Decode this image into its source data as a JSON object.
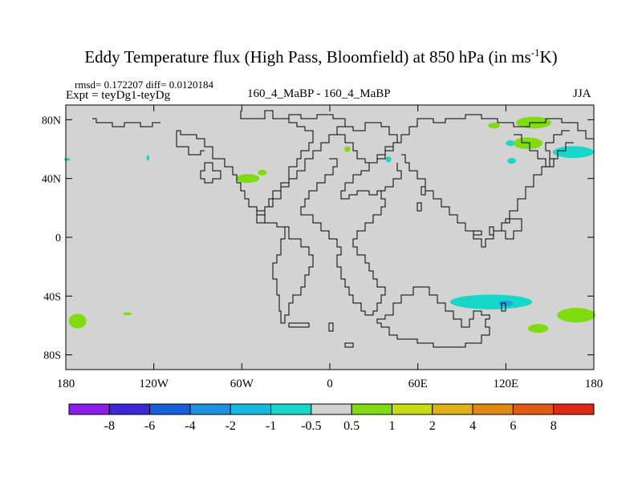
{
  "title": {
    "text_before": "Eddy Temperature flux (High Pass, Bloomfield) at 850 hPa (in ms",
    "superscript": "-1",
    "text_after": "K)"
  },
  "stats": "rmsd= 0.172207 diff= 0.0120184",
  "experiment": "Expt = teyDg1-teyDg",
  "center_label": "160_4_MaBP - 160_4_MaBP",
  "season": "JJA",
  "colors": {
    "land_background": "#d3d3d3",
    "coastline": "#000000"
  },
  "map": {
    "projection": "cylindrical-equidistant",
    "lon_range": [
      -180,
      180
    ],
    "lat_range": [
      -90,
      90
    ],
    "lon_ticks": [
      {
        "value": -180,
        "label": "180"
      },
      {
        "value": -120,
        "label": "120W"
      },
      {
        "value": -60,
        "label": "60W"
      },
      {
        "value": 0,
        "label": "0"
      },
      {
        "value": 60,
        "label": "60E"
      },
      {
        "value": 120,
        "label": "120E"
      },
      {
        "value": 180,
        "label": "180"
      }
    ],
    "lat_ticks": [
      {
        "value": 80,
        "label": "80N"
      },
      {
        "value": 40,
        "label": "40N"
      },
      {
        "value": 0,
        "label": "0"
      },
      {
        "value": -40,
        "label": "40S"
      },
      {
        "value": -80,
        "label": "80S"
      }
    ],
    "anomaly_patches": [
      {
        "lon": 166,
        "lat": 58,
        "rlon": 14,
        "rlat": 4,
        "color": "#16d8c8"
      },
      {
        "lon": 139,
        "lat": 78,
        "rlon": 12,
        "rlat": 4,
        "color": "#80dc10"
      },
      {
        "lon": 135,
        "lat": 64,
        "rlon": 10,
        "rlat": 4,
        "color": "#80dc10"
      },
      {
        "lon": 112,
        "lat": 76,
        "rlon": 4,
        "rlat": 2,
        "color": "#80dc10"
      },
      {
        "lon": 123,
        "lat": 64,
        "rlon": 3,
        "rlat": 2,
        "color": "#16d8c8"
      },
      {
        "lon": 124,
        "lat": 52,
        "rlon": 3,
        "rlat": 2,
        "color": "#16d8c8"
      },
      {
        "lon": 12,
        "lat": 60,
        "rlon": 2,
        "rlat": 2,
        "color": "#80dc10"
      },
      {
        "lon": 40,
        "lat": 53,
        "rlon": 2,
        "rlat": 2,
        "color": "#16d8c8"
      },
      {
        "lon": -56,
        "lat": 40,
        "rlon": 8,
        "rlat": 3,
        "color": "#80dc10"
      },
      {
        "lon": -46,
        "lat": 44,
        "rlon": 3,
        "rlat": 2,
        "color": "#80dc10"
      },
      {
        "lon": -124,
        "lat": 54,
        "rlon": 1,
        "rlat": 2,
        "color": "#16d8c8"
      },
      {
        "lon": -179,
        "lat": 53,
        "rlon": 2,
        "rlat": 1,
        "color": "#16d8c8"
      },
      {
        "lon": -172,
        "lat": -57,
        "rlon": 6,
        "rlat": 5,
        "color": "#80dc10"
      },
      {
        "lon": -138,
        "lat": -52,
        "rlon": 3,
        "rlat": 1,
        "color": "#80dc10"
      },
      {
        "lon": 110,
        "lat": -44,
        "rlon": 28,
        "rlat": 5,
        "color": "#16d8c8"
      },
      {
        "lon": 120,
        "lat": -45,
        "rlon": 5,
        "rlat": 2,
        "color": "#23a2e6"
      },
      {
        "lon": 168,
        "lat": -53,
        "rlon": 13,
        "rlat": 5,
        "color": "#80dc10"
      },
      {
        "lon": 142,
        "lat": -62,
        "rlon": 7,
        "rlat": 3,
        "color": "#80dc10"
      }
    ]
  },
  "colorbar": {
    "bins": [
      {
        "color": "#8c1eec"
      },
      {
        "color": "#3c28d8"
      },
      {
        "color": "#1560d8"
      },
      {
        "color": "#1e90e0"
      },
      {
        "color": "#14b8e0"
      },
      {
        "color": "#16d8c8"
      },
      {
        "color": "#d3d3d3"
      },
      {
        "color": "#80dc10"
      },
      {
        "color": "#c8dc14"
      },
      {
        "color": "#e0b014"
      },
      {
        "color": "#e08a14"
      },
      {
        "color": "#e05a14"
      },
      {
        "color": "#e02814"
      }
    ],
    "labels": [
      "-8",
      "-6",
      "-4",
      "-2",
      "-1",
      "-0.5",
      "0.5",
      "1",
      "2",
      "4",
      "6",
      "8"
    ]
  }
}
